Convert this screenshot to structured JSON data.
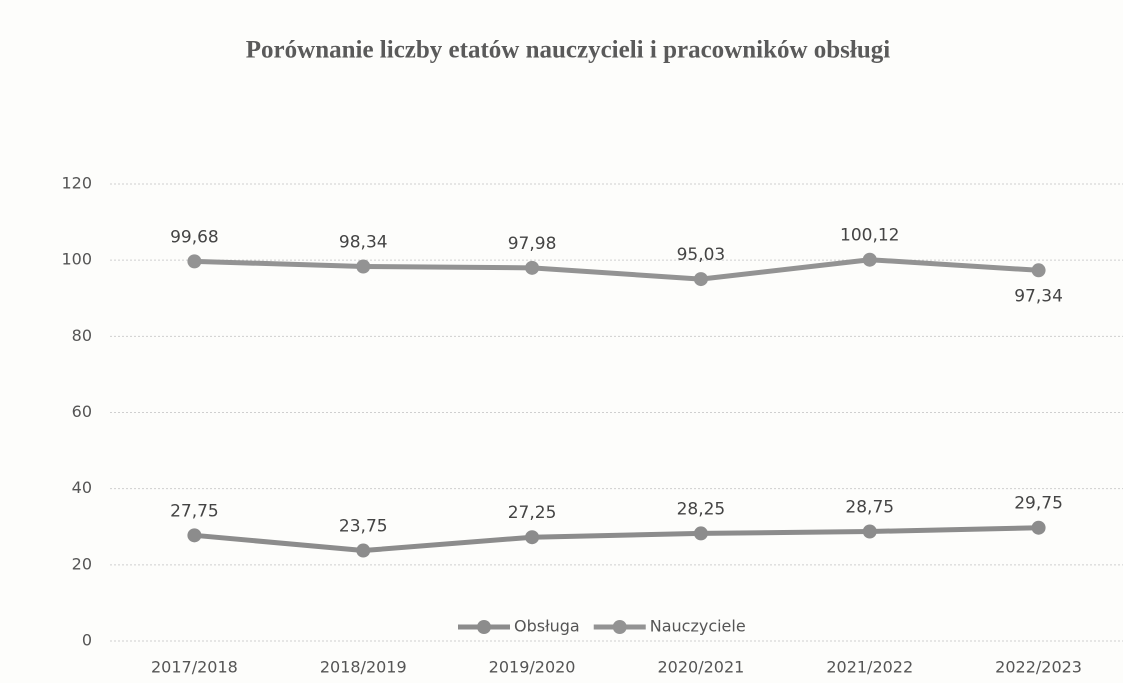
{
  "chart_data": {
    "type": "line",
    "title": "Porównanie liczby etatów nauczycieli i pracowników obsługi",
    "categories": [
      "2017/2018",
      "2018/2019",
      "2019/2020",
      "2020/2021",
      "2021/2022",
      "2022/2023"
    ],
    "series": [
      {
        "name": "Obsługa",
        "color": "#8c8c8c",
        "values": [
          27.75,
          23.75,
          27.25,
          28.25,
          28.75,
          29.75
        ],
        "value_labels": [
          "27,75",
          "23,75",
          "27,25",
          "28,25",
          "28,75",
          "29,75"
        ]
      },
      {
        "name": "Nauczyciele",
        "color": "#939393",
        "values": [
          99.68,
          98.34,
          97.98,
          95.03,
          100.12,
          97.34
        ],
        "value_labels": [
          "99,68",
          "98,34",
          "97,98",
          "95,03",
          "100,12",
          "97,34"
        ]
      }
    ],
    "ylim": [
      0,
      120
    ],
    "yticks": [
      0,
      20,
      40,
      60,
      80,
      100,
      120
    ],
    "grid": true,
    "legend": "bottom"
  }
}
